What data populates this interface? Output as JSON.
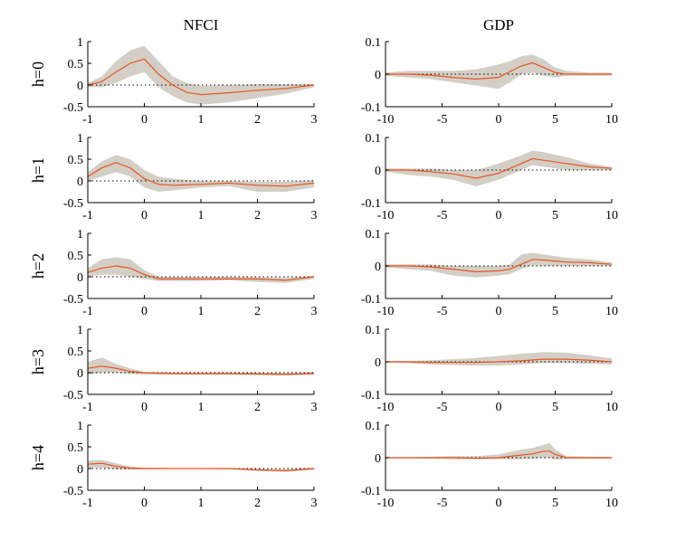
{
  "figure": {
    "columns": [
      {
        "title": "NFCI",
        "xlim": [
          -1,
          3
        ],
        "ylim": [
          -0.5,
          1
        ],
        "xticks": [
          "-1",
          "0",
          "1",
          "2",
          "3"
        ],
        "yticks": [
          "1",
          "0.5",
          "0",
          "-0.5"
        ]
      },
      {
        "title": "GDP",
        "xlim": [
          -10,
          10
        ],
        "ylim": [
          -0.1,
          0.1
        ],
        "xticks": [
          "-10",
          "-5",
          "0",
          "5",
          "10"
        ],
        "yticks": [
          "0.1",
          "0",
          "-0.1"
        ]
      }
    ],
    "rows": [
      {
        "label": "h=0"
      },
      {
        "label": "h=1"
      },
      {
        "label": "h=2"
      },
      {
        "label": "h=3"
      },
      {
        "label": "h=4"
      }
    ],
    "colors": {
      "line": "#e8531f",
      "band": "#d3cfc6",
      "zero_line": "#000000",
      "axis": "#000000"
    }
  },
  "chart_data": [
    {
      "type": "line",
      "panel": "NFCI h=0",
      "x": [
        -1,
        -0.75,
        -0.5,
        -0.25,
        0,
        0.25,
        0.5,
        0.75,
        1,
        1.5,
        2,
        2.5,
        3
      ],
      "values": [
        0,
        0.08,
        0.3,
        0.5,
        0.6,
        0.25,
        0,
        -0.17,
        -0.22,
        -0.18,
        -0.12,
        -0.08,
        0
      ],
      "band_upper": [
        0.05,
        0.2,
        0.55,
        0.8,
        0.9,
        0.55,
        0.2,
        0.05,
        -0.02,
        0,
        0.02,
        0.02,
        0.02
      ],
      "band_lower": [
        -0.05,
        -0.05,
        0.05,
        0.2,
        0.3,
        -0.05,
        -0.25,
        -0.4,
        -0.45,
        -0.4,
        -0.3,
        -0.2,
        -0.05
      ],
      "ylim": [
        -0.5,
        1
      ],
      "xlim": [
        -1,
        3
      ]
    },
    {
      "type": "line",
      "panel": "GDP h=0",
      "x": [
        -10,
        -8,
        -6,
        -4,
        -2,
        0,
        1,
        2,
        3,
        4,
        5,
        6,
        8,
        10
      ],
      "values": [
        0,
        0,
        -0.003,
        -0.01,
        -0.015,
        -0.01,
        0.008,
        0.025,
        0.035,
        0.02,
        0.005,
        0,
        0,
        0
      ],
      "band_upper": [
        0.005,
        0.01,
        0.01,
        0.01,
        0.015,
        0.03,
        0.04,
        0.055,
        0.06,
        0.045,
        0.02,
        0.01,
        0.005,
        0.005
      ],
      "band_lower": [
        -0.005,
        -0.01,
        -0.015,
        -0.025,
        -0.035,
        -0.045,
        -0.025,
        0,
        0.005,
        -0.005,
        -0.01,
        -0.005,
        -0.005,
        -0.005
      ],
      "ylim": [
        -0.1,
        0.1
      ],
      "xlim": [
        -10,
        10
      ]
    },
    {
      "type": "line",
      "panel": "NFCI h=1",
      "x": [
        -1,
        -0.75,
        -0.5,
        -0.25,
        0,
        0.25,
        0.5,
        1,
        1.5,
        2,
        2.5,
        3
      ],
      "values": [
        0.1,
        0.3,
        0.42,
        0.3,
        0.05,
        -0.08,
        -0.1,
        -0.08,
        -0.05,
        -0.1,
        -0.12,
        -0.05
      ],
      "band_upper": [
        0.2,
        0.45,
        0.6,
        0.5,
        0.25,
        0.1,
        0.05,
        0,
        0,
        -0.02,
        -0.02,
        0.02
      ],
      "band_lower": [
        0,
        0.1,
        0.2,
        0.1,
        -0.15,
        -0.25,
        -0.22,
        -0.15,
        -0.12,
        -0.25,
        -0.25,
        -0.15
      ],
      "ylim": [
        -0.5,
        1
      ],
      "xlim": [
        -1,
        3
      ]
    },
    {
      "type": "line",
      "panel": "GDP h=1",
      "x": [
        -10,
        -8,
        -6,
        -4,
        -2,
        0,
        2,
        3,
        4,
        6,
        8,
        10
      ],
      "values": [
        0,
        0,
        -0.005,
        -0.012,
        -0.025,
        -0.01,
        0.02,
        0.035,
        0.03,
        0.02,
        0.01,
        0.005
      ],
      "band_upper": [
        0.005,
        0.005,
        0.005,
        0,
        0,
        0.02,
        0.045,
        0.06,
        0.055,
        0.04,
        0.02,
        0.01
      ],
      "band_lower": [
        -0.005,
        -0.015,
        -0.02,
        -0.03,
        -0.05,
        -0.03,
        0,
        0.015,
        0.01,
        0,
        0,
        0
      ],
      "ylim": [
        -0.1,
        0.1
      ],
      "xlim": [
        -10,
        10
      ]
    },
    {
      "type": "line",
      "panel": "NFCI h=2",
      "x": [
        -1,
        -0.75,
        -0.5,
        -0.25,
        0,
        0.25,
        0.5,
        1,
        1.5,
        2,
        2.5,
        3
      ],
      "values": [
        0.1,
        0.2,
        0.25,
        0.2,
        0.05,
        -0.05,
        -0.05,
        -0.05,
        -0.05,
        -0.05,
        -0.08,
        0
      ],
      "band_upper": [
        0.2,
        0.4,
        0.45,
        0.4,
        0.15,
        0,
        0,
        0,
        0,
        -0.01,
        -0.02,
        0.02
      ],
      "band_lower": [
        0,
        0.05,
        0.05,
        0,
        -0.05,
        -0.1,
        -0.1,
        -0.1,
        -0.08,
        -0.12,
        -0.14,
        -0.05
      ],
      "ylim": [
        -0.5,
        1
      ],
      "xlim": [
        -1,
        3
      ]
    },
    {
      "type": "line",
      "panel": "GDP h=2",
      "x": [
        -10,
        -8,
        -6,
        -4,
        -2,
        0,
        1,
        2,
        3,
        4,
        6,
        8,
        10
      ],
      "values": [
        0,
        0,
        -0.003,
        -0.01,
        -0.018,
        -0.015,
        -0.01,
        0.005,
        0.02,
        0.018,
        0.012,
        0.01,
        0.005
      ],
      "band_upper": [
        0.005,
        0.005,
        0.005,
        0,
        0,
        0,
        0.005,
        0.035,
        0.04,
        0.035,
        0.025,
        0.02,
        0.01
      ],
      "band_lower": [
        -0.005,
        -0.01,
        -0.015,
        -0.03,
        -0.035,
        -0.03,
        -0.025,
        -0.01,
        0.002,
        0,
        0,
        0,
        0
      ],
      "ylim": [
        -0.1,
        0.1
      ],
      "xlim": [
        -10,
        10
      ]
    },
    {
      "type": "line",
      "panel": "NFCI h=3",
      "x": [
        -1,
        -0.75,
        -0.5,
        -0.25,
        0,
        0.5,
        1,
        1.5,
        2,
        2.5,
        3
      ],
      "values": [
        0.1,
        0.15,
        0.1,
        0.03,
        0,
        -0.02,
        -0.02,
        -0.02,
        -0.03,
        -0.04,
        -0.02
      ],
      "band_upper": [
        0.25,
        0.35,
        0.2,
        0.1,
        0.02,
        0,
        0,
        0,
        0,
        0,
        0.01
      ],
      "band_lower": [
        -0.05,
        0,
        0,
        -0.03,
        -0.05,
        -0.05,
        -0.05,
        -0.05,
        -0.06,
        -0.07,
        -0.04
      ],
      "ylim": [
        -0.5,
        1
      ],
      "xlim": [
        -1,
        3
      ]
    },
    {
      "type": "line",
      "panel": "GDP h=3",
      "x": [
        -10,
        -8,
        -6,
        -4,
        -2,
        0,
        2,
        4,
        6,
        8,
        10
      ],
      "values": [
        0,
        0,
        -0.002,
        -0.002,
        -0.002,
        0,
        0.003,
        0.008,
        0.008,
        0.005,
        0
      ],
      "band_upper": [
        0.002,
        0.003,
        0.005,
        0.008,
        0.012,
        0.018,
        0.025,
        0.03,
        0.028,
        0.02,
        0.01
      ],
      "band_lower": [
        -0.002,
        -0.005,
        -0.008,
        -0.01,
        -0.012,
        -0.012,
        -0.008,
        -0.003,
        -0.004,
        -0.006,
        -0.008
      ],
      "ylim": [
        -0.1,
        0.1
      ],
      "xlim": [
        -10,
        10
      ]
    },
    {
      "type": "line",
      "panel": "NFCI h=4",
      "x": [
        -1,
        -0.75,
        -0.5,
        -0.25,
        0,
        0.5,
        1,
        1.5,
        2,
        2.5,
        3
      ],
      "values": [
        0.1,
        0.12,
        0.05,
        0.01,
        0,
        0,
        0,
        0,
        -0.03,
        -0.05,
        0
      ],
      "band_upper": [
        0.18,
        0.2,
        0.12,
        0.05,
        0.02,
        0.01,
        0.01,
        0.01,
        -0.01,
        -0.02,
        0.02
      ],
      "band_lower": [
        0.02,
        0.02,
        -0.02,
        -0.03,
        -0.02,
        -0.01,
        -0.01,
        -0.02,
        -0.06,
        -0.08,
        -0.03
      ],
      "ylim": [
        -0.5,
        1
      ],
      "xlim": [
        -1,
        3
      ]
    },
    {
      "type": "line",
      "panel": "GDP h=4",
      "x": [
        -10,
        -8,
        -6,
        -4,
        -2,
        0,
        2,
        3,
        4,
        4.5,
        5,
        6,
        8,
        10
      ],
      "values": [
        0,
        0,
        0,
        0,
        -0.002,
        0,
        0.008,
        0.012,
        0.02,
        0.02,
        0.01,
        0,
        0,
        0
      ],
      "band_upper": [
        0.002,
        0.002,
        0.003,
        0.005,
        0.005,
        0.01,
        0.025,
        0.03,
        0.04,
        0.045,
        0.025,
        0.005,
        0.003,
        0.003
      ],
      "band_lower": [
        -0.002,
        -0.002,
        -0.003,
        -0.005,
        -0.005,
        -0.005,
        -0.005,
        -0.003,
        0,
        0,
        -0.005,
        -0.005,
        -0.003,
        -0.003
      ],
      "ylim": [
        -0.1,
        0.1
      ],
      "xlim": [
        -10,
        10
      ]
    }
  ]
}
